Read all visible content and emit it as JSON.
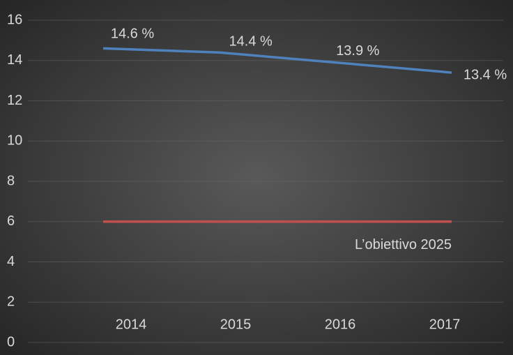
{
  "chart_data": {
    "type": "line",
    "categories": [
      "2014",
      "2015",
      "2016",
      "2017"
    ],
    "series": [
      {
        "color": "#4f81bd",
        "values": [
          14.6,
          14.4,
          13.9,
          13.4
        ],
        "value_labels": [
          "14.6 %",
          "14.4 %",
          "13.9 %",
          "13.4 %"
        ]
      },
      {
        "color": "#c0504d",
        "values": [
          6,
          6,
          6,
          6
        ]
      }
    ],
    "annotations": [
      "L’obiettivo 2025"
    ],
    "ylim": [
      0,
      16
    ],
    "yticks": [
      0,
      2,
      4,
      6,
      8,
      10,
      12,
      14,
      16
    ],
    "grid": true
  }
}
